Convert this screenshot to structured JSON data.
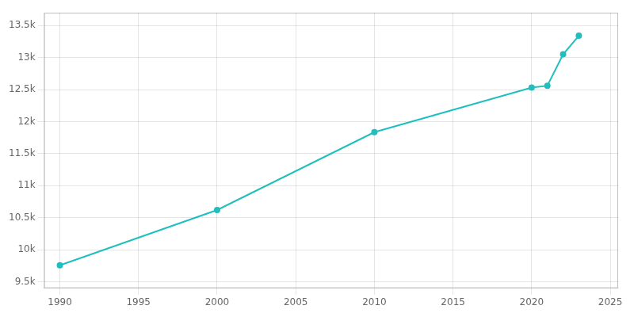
{
  "chart_data": {
    "type": "line",
    "x": [
      1990,
      2000,
      2010,
      2020,
      2021,
      2022,
      2023
    ],
    "values": [
      9757,
      10620,
      11835,
      12530,
      12560,
      13050,
      13340
    ],
    "color": "#20bfbf",
    "marker": "circle",
    "xlim": [
      1989.0,
      2025.5
    ],
    "ylim": [
      9400,
      13700
    ],
    "xticks": [
      1990,
      1995,
      2000,
      2005,
      2010,
      2015,
      2020,
      2025
    ],
    "yticks": [
      {
        "value": 9500,
        "label": "9.5k"
      },
      {
        "value": 10000,
        "label": "10k"
      },
      {
        "value": 10500,
        "label": "10.5k"
      },
      {
        "value": 11000,
        "label": "11k"
      },
      {
        "value": 11500,
        "label": "11.5k"
      },
      {
        "value": 12000,
        "label": "12k"
      },
      {
        "value": 12500,
        "label": "12.5k"
      },
      {
        "value": 13000,
        "label": "13k"
      },
      {
        "value": 13500,
        "label": "13.5k"
      }
    ],
    "grid": true
  }
}
